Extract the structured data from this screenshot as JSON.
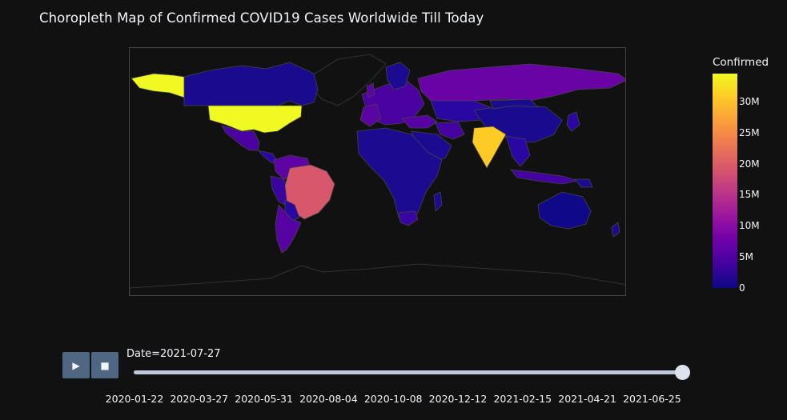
{
  "title": "Choropleth Map of Confirmed COVID19 Cases Worldwide Till Today",
  "colorbar": {
    "title": "Confirmed",
    "ticks": [
      "0",
      "5M",
      "10M",
      "15M",
      "20M",
      "25M",
      "30M"
    ],
    "colorscale": [
      "#0d0887",
      "#46039f",
      "#7201a8",
      "#9c179e",
      "#bd3786",
      "#d8576b",
      "#ed7953",
      "#fb9f3a",
      "#fdca26",
      "#f0f921"
    ]
  },
  "animation": {
    "play_label": "▶",
    "stop_label": "■",
    "current_label": "Date=2021-07-27",
    "current_date": "2021-07-27",
    "progress": 1.0,
    "date_ticks": [
      "2020-01-22",
      "2020-03-27",
      "2020-05-31",
      "2020-08-04",
      "2020-10-08",
      "2020-12-12",
      "2021-02-15",
      "2021-04-21",
      "2021-06-25"
    ]
  },
  "chart_data": {
    "type": "choropleth",
    "metric": "Confirmed",
    "range": [
      0,
      34500000
    ],
    "countries": [
      {
        "code": "USA",
        "value": 34500000
      },
      {
        "code": "IND",
        "value": 31500000
      },
      {
        "code": "BRA",
        "value": 19700000
      },
      {
        "code": "RUS",
        "value": 6200000
      },
      {
        "code": "FRA",
        "value": 6100000
      },
      {
        "code": "TUR",
        "value": 5700000
      },
      {
        "code": "GBR",
        "value": 5800000
      },
      {
        "code": "ARG",
        "value": 4900000
      },
      {
        "code": "COL",
        "value": 4700000
      },
      {
        "code": "ESP",
        "value": 4400000
      },
      {
        "code": "ITA",
        "value": 4300000
      },
      {
        "code": "IRN",
        "value": 3800000
      },
      {
        "code": "DEU",
        "value": 3800000
      },
      {
        "code": "IDN",
        "value": 3200000
      },
      {
        "code": "MEX",
        "value": 2800000
      },
      {
        "code": "ZAF",
        "value": 2400000
      },
      {
        "code": "PER",
        "value": 2100000
      },
      {
        "code": "CAN",
        "value": 1400000
      },
      {
        "code": "CHN",
        "value": 100000
      },
      {
        "code": "AUS",
        "value": 33000
      }
    ]
  }
}
